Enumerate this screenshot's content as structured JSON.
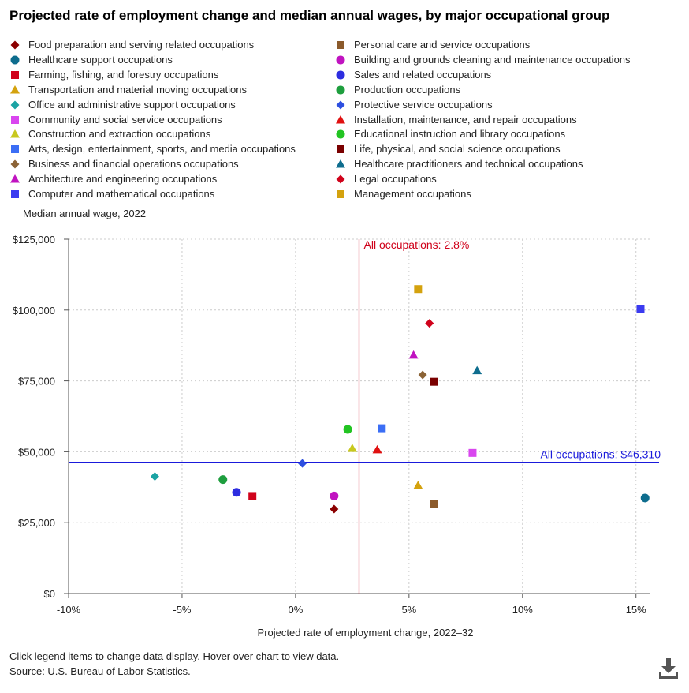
{
  "title": "Projected rate of employment change and median annual wages, by major occupational group",
  "footer": {
    "note": "Click legend items to change data display. Hover over chart to view data.",
    "source": "Source: U.S. Bureau of Labor Statistics."
  },
  "icons": {
    "download": "download-icon"
  },
  "chart_data": {
    "type": "scatter",
    "title": "Projected rate of employment change and median annual wages, by major occupational group",
    "xlabel": "Projected rate of employment change, 2022–32",
    "ylabel": "Median annual wage, 2022",
    "xlim": [
      -10,
      15.6
    ],
    "ylim": [
      0,
      125000
    ],
    "x_ticks": [
      -10,
      -5,
      0,
      5,
      10,
      15
    ],
    "x_tick_labels": [
      "-10%",
      "-5%",
      "0%",
      "5%",
      "10%",
      "15%"
    ],
    "y_ticks": [
      0,
      25000,
      50000,
      75000,
      100000,
      125000
    ],
    "y_tick_labels": [
      "$0",
      "$25,000",
      "$50,000",
      "$75,000",
      "$100,000",
      "$125,000"
    ],
    "grid": true,
    "reference_lines": [
      {
        "axis": "x",
        "value": 2.8,
        "label": "All occupations: 2.8%",
        "color": "#d0021b"
      },
      {
        "axis": "y",
        "value": 46310,
        "label": "All occupations: $46,310",
        "color": "#1a1adb"
      }
    ],
    "series": [
      {
        "name": "Food preparation and serving related occupations",
        "shape": "diamond",
        "color": "#8b0000",
        "x": 1.7,
        "y": 29800
      },
      {
        "name": "Healthcare support occupations",
        "shape": "circle",
        "color": "#0e6d8e",
        "x": 15.4,
        "y": 33700
      },
      {
        "name": "Farming, fishing, and forestry occupations",
        "shape": "square",
        "color": "#d0021b",
        "x": -1.9,
        "y": 34400
      },
      {
        "name": "Transportation and material moving occupations",
        "shape": "triangle",
        "color": "#d4a20e",
        "x": 5.4,
        "y": 38100
      },
      {
        "name": "Office and administrative support occupations",
        "shape": "diamond",
        "color": "#1aa3a3",
        "x": -6.2,
        "y": 41300
      },
      {
        "name": "Community and social service occupations",
        "shape": "square",
        "color": "#d946ef",
        "x": 7.8,
        "y": 49600
      },
      {
        "name": "Construction and extraction occupations",
        "shape": "triangle",
        "color": "#c8c81e",
        "x": 2.5,
        "y": 51200
      },
      {
        "name": "Arts, design, entertainment, sports, and media occupations",
        "shape": "square",
        "color": "#3b6ef5",
        "x": 3.8,
        "y": 58300
      },
      {
        "name": "Business and financial operations occupations",
        "shape": "diamond",
        "color": "#8b6336",
        "x": 5.6,
        "y": 77100
      },
      {
        "name": "Architecture and engineering occupations",
        "shape": "triangle",
        "color": "#c013c0",
        "x": 5.2,
        "y": 84100
      },
      {
        "name": "Computer and mathematical occupations",
        "shape": "square",
        "color": "#3b3bf0",
        "x": 15.2,
        "y": 100500
      },
      {
        "name": "Personal care and service occupations",
        "shape": "square",
        "color": "#8b5a2b",
        "x": 6.1,
        "y": 31600
      },
      {
        "name": "Building and grounds cleaning and maintenance occupations",
        "shape": "circle",
        "color": "#c013c0",
        "x": 1.7,
        "y": 34400
      },
      {
        "name": "Sales and related occupations",
        "shape": "circle",
        "color": "#2d2de0",
        "x": -2.6,
        "y": 35700
      },
      {
        "name": "Production occupations",
        "shape": "circle",
        "color": "#1e9e3e",
        "x": -3.2,
        "y": 40200
      },
      {
        "name": "Protective service occupations",
        "shape": "diamond",
        "color": "#2d4fe0",
        "x": 0.3,
        "y": 45900
      },
      {
        "name": "Installation, maintenance, and repair occupations",
        "shape": "triangle",
        "color": "#e01010",
        "x": 3.6,
        "y": 50700
      },
      {
        "name": "Educational instruction and library occupations",
        "shape": "circle",
        "color": "#22c422",
        "x": 2.3,
        "y": 57900
      },
      {
        "name": "Life, physical, and social science occupations",
        "shape": "square",
        "color": "#7a0000",
        "x": 6.1,
        "y": 74700
      },
      {
        "name": "Healthcare practitioners and technical occupations",
        "shape": "triangle",
        "color": "#0e6d8e",
        "x": 8.0,
        "y": 78600
      },
      {
        "name": "Legal occupations",
        "shape": "diamond",
        "color": "#d0021b",
        "x": 5.9,
        "y": 95300
      },
      {
        "name": "Management occupations",
        "shape": "square",
        "color": "#d4a20e",
        "x": 5.4,
        "y": 107400
      }
    ]
  }
}
